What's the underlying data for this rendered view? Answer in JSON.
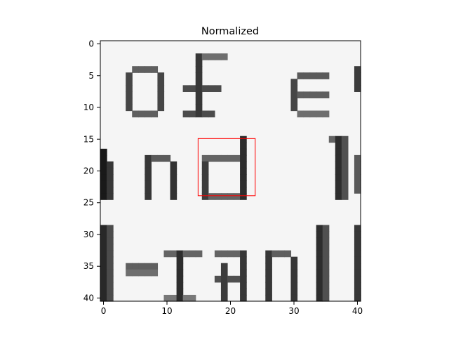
{
  "chart_data": {
    "type": "heatmap",
    "title": "Normalized",
    "colormap": "gray",
    "grid": false,
    "xlim": [
      -0.5,
      40.5
    ],
    "ylim": [
      40.5,
      -0.5
    ],
    "x_ticks": [
      0,
      10,
      20,
      30,
      40
    ],
    "y_ticks": [
      0,
      5,
      10,
      15,
      20,
      25,
      30,
      35,
      40
    ],
    "x_tick_labels": [
      "0",
      "10",
      "20",
      "30",
      "40"
    ],
    "y_tick_labels": [
      "0",
      "5",
      "10",
      "15",
      "20",
      "25",
      "30",
      "35",
      "40"
    ],
    "image_content": {
      "description_shown": "grayscale crop of printed text",
      "text_rows": [
        {
          "text": "of  e",
          "approx_row_range": [
            2,
            11
          ]
        },
        {
          "text": "nd  l",
          "approx_row_range": [
            15,
            24
          ]
        },
        {
          "text": "l-ranl",
          "approx_row_range": [
            29,
            40
          ]
        }
      ]
    },
    "highlight_box": {
      "color": "#ff0000",
      "x0": 14.9,
      "y0": 14.9,
      "x1": 23.9,
      "y1": 23.9
    },
    "highlight_stroke": "#ff0000"
  }
}
